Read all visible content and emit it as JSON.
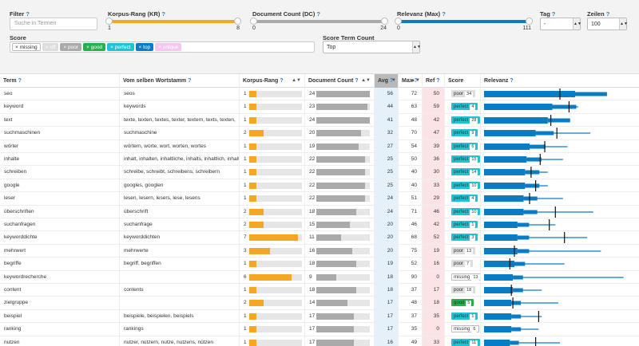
{
  "filters": {
    "filter_label": "Filter",
    "filter_placeholder": "Suche in Termen",
    "korpus_label": "Korpus-Rang (KR)",
    "korpus_min": "1",
    "korpus_max": "8",
    "korpus_color": "#f5a623",
    "doc_label": "Document Count (DC)",
    "doc_min": "0",
    "doc_max": "24",
    "doc_color": "#aaaaaa",
    "rel_label": "Relevanz (Max)",
    "rel_min": "0",
    "rel_max": "111",
    "rel_color": "#0a7cc4",
    "tag_label": "Tag",
    "tag_value": "-",
    "zeilen_label": "Zeilen",
    "zeilen_value": "100",
    "score_label": "Score",
    "score_term_label": "Score Term Count",
    "score_term_value": "Top",
    "score_tags": [
      {
        "label": "× missing",
        "bg": "#ffffff",
        "fg": "#333333",
        "border": "#bbbbbb"
      },
      {
        "label": "× off",
        "bg": "#dddddd",
        "fg": "#ffffff",
        "border": "#dddddd"
      },
      {
        "label": "× poor",
        "bg": "#aaaaaa",
        "fg": "#ffffff",
        "border": "#aaaaaa"
      },
      {
        "label": "× good",
        "bg": "#22b14c",
        "fg": "#ffffff",
        "border": "#22b14c"
      },
      {
        "label": "× perfect",
        "bg": "#1fc3d6",
        "fg": "#ffffff",
        "border": "#1fc3d6"
      },
      {
        "label": "× top",
        "bg": "#0a7cc4",
        "fg": "#ffffff",
        "border": "#0a7cc4"
      },
      {
        "label": "× unique",
        "bg": "#f7c6f0",
        "fg": "#ffffff",
        "border": "#f7c6f0"
      }
    ]
  },
  "columns": {
    "term": "Term",
    "stem": "Vom selben Wortstamm",
    "korpus": "Korpus-Rang",
    "doc": "Document Count",
    "avg": "Avg",
    "max": "Max",
    "ref": "Ref",
    "score": "Score",
    "relevanz": "Relevanz"
  },
  "rows": [
    {
      "term": "seo",
      "stem": "seos",
      "kr": 1,
      "dc": 24,
      "avg": 56,
      "max": 72,
      "ref": 50,
      "score": "poor",
      "sc": 34,
      "rel": {
        "bar": 0.6,
        "line": 0.75,
        "mark": 0.5
      }
    },
    {
      "term": "keyword",
      "stem": "keywords",
      "kr": 1,
      "dc": 23,
      "avg": 44,
      "max": 63,
      "ref": 59,
      "score": "perfect",
      "sc": 4,
      "rel": {
        "bar": 0.45,
        "line": 0.62,
        "mark": 0.56
      }
    },
    {
      "term": "text",
      "stem": "texte, texten, textes, texter, textern, texts, texten,",
      "kr": 1,
      "dc": 24,
      "avg": 41,
      "max": 48,
      "ref": 42,
      "score": "perfect",
      "sc": 28,
      "rel": {
        "bar": 0.42,
        "line": 0.48,
        "mark": 0.44
      }
    },
    {
      "term": "suchmaschinen",
      "stem": "suchmaschine",
      "kr": 2,
      "dc": 20,
      "avg": 32,
      "max": 70,
      "ref": 47,
      "score": "perfect",
      "sc": 9,
      "rel": {
        "bar": 0.34,
        "line": 0.7,
        "mark": 0.48
      }
    },
    {
      "term": "wörter",
      "stem": "wörtern, worte, wort, worten, wortes",
      "kr": 1,
      "dc": 19,
      "avg": 27,
      "max": 54,
      "ref": 39,
      "score": "perfect",
      "sc": 6,
      "rel": {
        "bar": 0.3,
        "line": 0.55,
        "mark": 0.4
      }
    },
    {
      "term": "inhalte",
      "stem": "inhalt, inhalten, inhaltliche, inhalts, inhaltlich, inhalte",
      "kr": 1,
      "dc": 22,
      "avg": 25,
      "max": 50,
      "ref": 36,
      "score": "perfect",
      "sc": 15,
      "rel": {
        "bar": 0.28,
        "line": 0.52,
        "mark": 0.37
      }
    },
    {
      "term": "schreiben",
      "stem": "schreibe, schreibt, schreibens, schreibern",
      "kr": 1,
      "dc": 22,
      "avg": 25,
      "max": 40,
      "ref": 30,
      "score": "perfect",
      "sc": 14,
      "rel": {
        "bar": 0.27,
        "line": 0.42,
        "mark": 0.31
      }
    },
    {
      "term": "google",
      "stem": "googles, googlen",
      "kr": 1,
      "dc": 22,
      "avg": 25,
      "max": 40,
      "ref": 33,
      "score": "perfect",
      "sc": 10,
      "rel": {
        "bar": 0.27,
        "line": 0.42,
        "mark": 0.34
      }
    },
    {
      "term": "leser",
      "stem": "lesen, lesern, lesers, lese, lesens",
      "kr": 1,
      "dc": 22,
      "avg": 24,
      "max": 51,
      "ref": 29,
      "score": "perfect",
      "sc": 4,
      "rel": {
        "bar": 0.26,
        "line": 0.52,
        "mark": 0.3
      }
    },
    {
      "term": "überschriften",
      "stem": "überschrift",
      "kr": 2,
      "dc": 18,
      "avg": 24,
      "max": 71,
      "ref": 46,
      "score": "perfect",
      "sc": 10,
      "rel": {
        "bar": 0.26,
        "line": 0.72,
        "mark": 0.47
      }
    },
    {
      "term": "suchanfragen",
      "stem": "suchanfrage",
      "kr": 2,
      "dc": 15,
      "avg": 20,
      "max": 46,
      "ref": 42,
      "score": "perfect",
      "sc": 1,
      "rel": {
        "bar": 0.22,
        "line": 0.47,
        "mark": 0.43
      }
    },
    {
      "term": "keyworddichte",
      "stem": "keyworddichten",
      "kr": 7,
      "dc": 11,
      "avg": 20,
      "max": 68,
      "ref": 52,
      "score": "perfect",
      "sc": 3,
      "rel": {
        "bar": 0.22,
        "line": 0.68,
        "mark": 0.53
      }
    },
    {
      "term": "mehrwert",
      "stem": "mehrwerte",
      "kr": 3,
      "dc": 16,
      "avg": 20,
      "max": 75,
      "ref": 19,
      "score": "poor",
      "sc": 13,
      "rel": {
        "bar": 0.22,
        "line": 0.77,
        "mark": 0.2
      }
    },
    {
      "term": "begriffe",
      "stem": "begriff, begriffen",
      "kr": 1,
      "dc": 18,
      "avg": 19,
      "max": 52,
      "ref": 16,
      "score": "poor",
      "sc": 7,
      "rel": {
        "bar": 0.2,
        "line": 0.53,
        "mark": 0.17
      }
    },
    {
      "term": "keywordrecherche",
      "stem": "",
      "kr": 6,
      "dc": 9,
      "avg": 18,
      "max": 90,
      "ref": 0,
      "score": "missing",
      "sc": 13,
      "rel": {
        "bar": 0.19,
        "line": 0.92,
        "mark": -1
      }
    },
    {
      "term": "content",
      "stem": "contents",
      "kr": 1,
      "dc": 18,
      "avg": 18,
      "max": 37,
      "ref": 17,
      "score": "poor",
      "sc": 18,
      "rel": {
        "bar": 0.19,
        "line": 0.38,
        "mark": 0.18
      }
    },
    {
      "term": "zielgruppe",
      "stem": "",
      "kr": 2,
      "dc": 14,
      "avg": 17,
      "max": 48,
      "ref": 18,
      "score": "good",
      "sc": 5,
      "rel": {
        "bar": 0.18,
        "line": 0.49,
        "mark": 0.19
      }
    },
    {
      "term": "beispiel",
      "stem": "beispiele, beispielen, beispiels",
      "kr": 1,
      "dc": 17,
      "avg": 17,
      "max": 37,
      "ref": 35,
      "score": "perfect",
      "sc": 1,
      "rel": {
        "bar": 0.18,
        "line": 0.38,
        "mark": 0.36
      }
    },
    {
      "term": "ranking",
      "stem": "rankings",
      "kr": 1,
      "dc": 17,
      "avg": 17,
      "max": 35,
      "ref": 0,
      "score": "missing",
      "sc": 6,
      "rel": {
        "bar": 0.18,
        "line": 0.36,
        "mark": -1
      }
    },
    {
      "term": "nutzen",
      "stem": "nutzer, nutzern, nutze, nutzens, nützen",
      "kr": 1,
      "dc": 17,
      "avg": 16,
      "max": 49,
      "ref": 33,
      "score": "perfect",
      "sc": 11,
      "rel": {
        "bar": 0.17,
        "line": 0.5,
        "mark": 0.34
      }
    }
  ],
  "colors": {
    "korpus_bar": "#f5a623",
    "doc_bar": "#aaaaaa",
    "rel_bar": "#0a7cc4",
    "avg_col_bg": "#e4f1fb",
    "ref_col_bg": "#fbe3e6",
    "perfect": "#1fc3d6",
    "poor": "#dddddd",
    "good": "#22b14c",
    "missing": "#ffffff"
  }
}
